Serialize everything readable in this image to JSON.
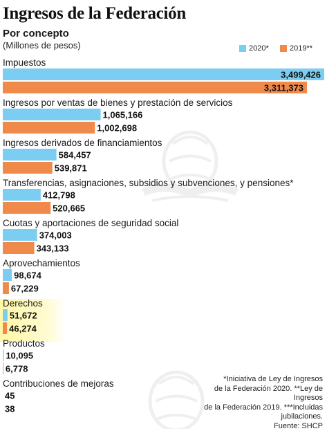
{
  "header": {
    "title": "Ingresos de la Federación",
    "subtitle": "Por concepto",
    "units": "(Millones de pesos)"
  },
  "legend": {
    "items": [
      {
        "label": "2020*",
        "color": "#7ccdf2"
      },
      {
        "label": "2019**",
        "color": "#f08a4b"
      }
    ]
  },
  "chart_data": {
    "type": "bar",
    "orientation": "horizontal",
    "categories": [
      "Impuestos",
      "Ingresos por ventas de bienes y prestación de servicios",
      "Ingresos derivados de financiamientos",
      "Transferencias, asignaciones, subsidios y subvenciones, y pensiones*",
      "Cuotas y aportaciones de seguridad social",
      "Aprovechamientos",
      "Derechos",
      "Productos",
      "Contribuciones de mejoras"
    ],
    "series": [
      {
        "name": "2020*",
        "color": "#7ccdf2",
        "values": [
          3499426,
          1065166,
          584457,
          412798,
          374003,
          98674,
          51672,
          10095,
          45
        ],
        "labels": [
          "3,499,426",
          "1,065,166",
          "584,457",
          "412,798",
          "374,003",
          "98,674",
          "51,672",
          "10,095",
          "45"
        ]
      },
      {
        "name": "2019**",
        "color": "#f08a4b",
        "values": [
          3311373,
          1002698,
          539871,
          520665,
          343133,
          67229,
          46274,
          6778,
          38
        ],
        "labels": [
          "3,311,373",
          "1,002,698",
          "539,871",
          "520,665",
          "343,133",
          "67,229",
          "46,274",
          "6,778",
          "38"
        ]
      }
    ],
    "highlighted_category": "Derechos",
    "xlim": [
      0,
      3499426
    ]
  },
  "footnote": {
    "lines": [
      "*Iniciativa de Ley de Ingresos",
      "de la Federación 2020. **Ley de Ingresos",
      "de la Federación 2019. ***Incluidas",
      "jubilaciones.",
      "Fuente: SHCP"
    ]
  }
}
